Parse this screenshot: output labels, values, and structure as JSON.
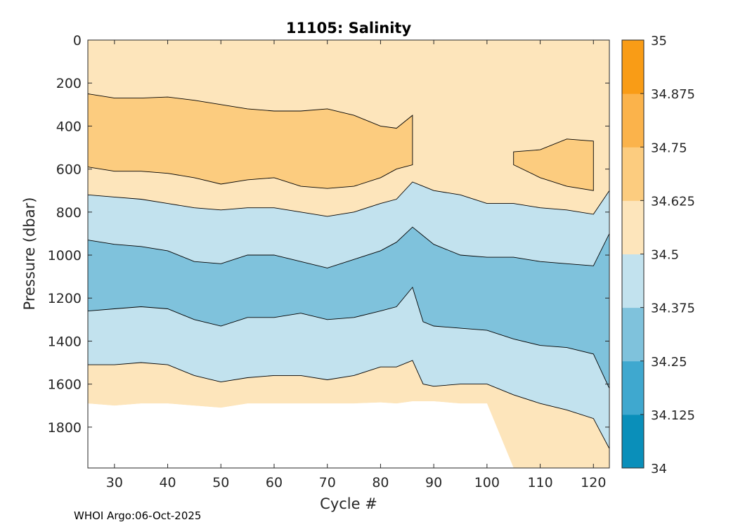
{
  "chart_data": {
    "type": "heatmap",
    "title": "11105:  Salinity",
    "xlabel": "Cycle #",
    "ylabel": "Pressure (dbar)",
    "xlim": [
      25,
      123
    ],
    "ylim": [
      0,
      1990
    ],
    "y_reversed": true,
    "x_ticks": [
      30,
      40,
      50,
      60,
      70,
      80,
      90,
      100,
      110,
      120
    ],
    "y_ticks": [
      0,
      200,
      400,
      600,
      800,
      1000,
      1200,
      1400,
      1600,
      1800
    ],
    "colorbar": {
      "levels": [
        34,
        34.125,
        34.25,
        34.375,
        34.5,
        34.625,
        34.75,
        34.875,
        35
      ],
      "tick_labels": [
        "34",
        "34.125",
        "34.25",
        "34.375",
        "34.5",
        "34.625",
        "34.75",
        "34.875",
        "35"
      ],
      "colors": [
        "#0a8fba",
        "#3fa8cf",
        "#7fc2dc",
        "#c2e2ee",
        "#fde5bb",
        "#fccc7f",
        "#fbb34b",
        "#f99c16"
      ]
    },
    "contour_boundaries": {
      "cycles": [
        25,
        30,
        35,
        40,
        45,
        50,
        55,
        60,
        65,
        70,
        75,
        80,
        83,
        86,
        88,
        90,
        95,
        100,
        105,
        110,
        115,
        120,
        123
      ],
      "upper_band_top": [
        250,
        270,
        270,
        265,
        280,
        300,
        320,
        330,
        330,
        320,
        350,
        400,
        410,
        350,
        null,
        null,
        null,
        null,
        520,
        510,
        460,
        470,
        null
      ],
      "upper_band_bottom": [
        590,
        610,
        610,
        620,
        640,
        670,
        650,
        640,
        680,
        690,
        680,
        640,
        600,
        580,
        null,
        null,
        null,
        null,
        580,
        640,
        680,
        700,
        null
      ],
      "salty_to_fresh_800": [
        720,
        730,
        740,
        760,
        780,
        790,
        780,
        780,
        800,
        820,
        800,
        760,
        740,
        660,
        680,
        700,
        720,
        760,
        760,
        780,
        790,
        810,
        700
      ],
      "fresh_to_deep_1000": [
        930,
        950,
        960,
        980,
        1030,
        1040,
        1000,
        1000,
        1030,
        1060,
        1020,
        980,
        940,
        870,
        910,
        950,
        1000,
        1010,
        1010,
        1030,
        1040,
        1050,
        900
      ],
      "deep_to_fresh_1250": [
        1260,
        1250,
        1240,
        1250,
        1300,
        1330,
        1290,
        1290,
        1270,
        1300,
        1290,
        1260,
        1240,
        1150,
        1310,
        1330,
        1340,
        1350,
        1390,
        1420,
        1430,
        1460,
        1620
      ],
      "fresh_to_salty_1550": [
        1510,
        1510,
        1500,
        1510,
        1560,
        1590,
        1570,
        1560,
        1560,
        1580,
        1560,
        1520,
        1520,
        1490,
        1600,
        1610,
        1600,
        1600,
        1650,
        1690,
        1720,
        1760,
        1900
      ],
      "data_bottom": [
        1690,
        1700,
        1690,
        1690,
        1700,
        1710,
        1690,
        1690,
        1690,
        1690,
        1690,
        1685,
        1690,
        1680,
        1680,
        1680,
        1690,
        1690,
        1990,
        1990,
        1990,
        1990,
        1990
      ]
    }
  },
  "footer": "WHOI Argo:06-Oct-2025"
}
